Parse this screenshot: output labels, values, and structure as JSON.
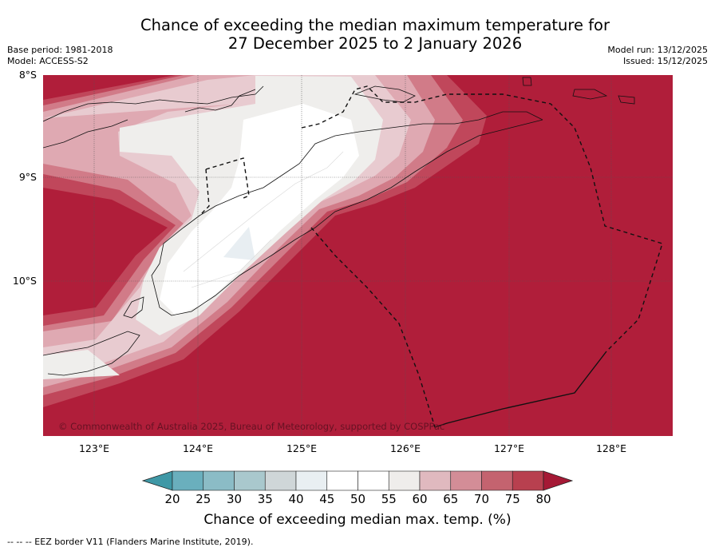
{
  "header": {
    "title_line1": "Chance of exceeding the median maximum temperature for",
    "title_line2": "27 December 2025 to 2 January 2026",
    "base_period": "Base period: 1981-2018",
    "model": "Model: ACCESS-S2",
    "model_run": "Model run: 13/12/2025",
    "issued": "Issued: 15/12/2025"
  },
  "map": {
    "lat_labels": [
      "8°S",
      "9°S",
      "10°S"
    ],
    "lon_labels": [
      "123°E",
      "124°E",
      "125°E",
      "126°E",
      "127°E",
      "128°E"
    ],
    "copyright": "© Commonwealth of Australia 2025, Bureau of Meteorology, supported by COSPPac"
  },
  "colorbar": {
    "ticks": [
      "20",
      "25",
      "30",
      "35",
      "40",
      "45",
      "50",
      "55",
      "60",
      "65",
      "70",
      "75",
      "80"
    ],
    "colors": [
      "#3f98a6",
      "#6aafbd",
      "#8bbcc6",
      "#a9c8cd",
      "#cfd6d8",
      "#e9eff2",
      "#ffffff",
      "#ffffff",
      "#efedeb",
      "#e0b9bf",
      "#d38d97",
      "#c4636f",
      "#b8404f",
      "#a51935"
    ],
    "label": "Chance of exceeding median max. temp. (%)"
  },
  "footnote": "--  --  -- EEZ border V11 (Flanders Marine Institute, 2019)."
}
